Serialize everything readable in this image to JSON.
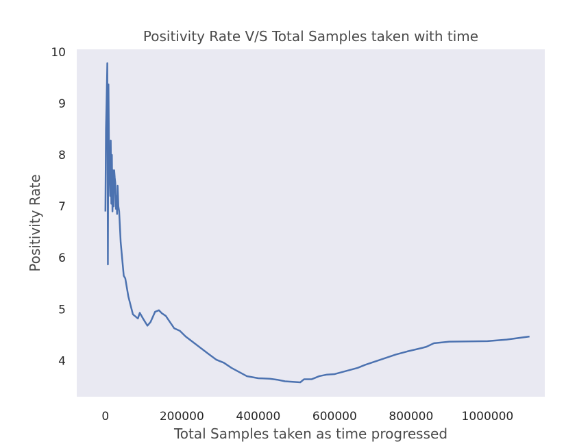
{
  "chart_data": {
    "type": "line",
    "title": "Positivity Rate V/S Total Samples taken with time",
    "xlabel": "Total Samples taken as time progressed",
    "ylabel": "Positivity Rate",
    "xlim": [
      -75000,
      1150000
    ],
    "ylim": [
      3.3,
      10.05
    ],
    "grid": false,
    "legend": "none",
    "colors": {
      "background": "#e9e9f2",
      "line": "#4c72b0"
    },
    "x_ticks": [
      0,
      200000,
      400000,
      600000,
      800000,
      1000000
    ],
    "x_tick_labels": [
      "0",
      "200000",
      "400000",
      "600000",
      "800000",
      "1000000"
    ],
    "y_ticks": [
      4,
      5,
      6,
      7,
      8,
      9,
      10
    ],
    "y_tick_labels": [
      "4",
      "5",
      "6",
      "7",
      "8",
      "9",
      "10"
    ],
    "x": [
      0,
      1500,
      3000,
      5000,
      6500,
      8000,
      9500,
      11000,
      12500,
      14000,
      15500,
      17000,
      18500,
      20000,
      21500,
      23000,
      24500,
      26000,
      27500,
      29000,
      30500,
      32000,
      34000,
      36000,
      40000,
      48000,
      52000,
      60000,
      72000,
      85000,
      90000,
      100000,
      110000,
      118000,
      130000,
      140000,
      148000,
      158000,
      180000,
      195000,
      210000,
      240000,
      270000,
      290000,
      310000,
      330000,
      350000,
      370000,
      400000,
      430000,
      450000,
      470000,
      510000,
      520000,
      540000,
      560000,
      580000,
      600000,
      620000,
      640000,
      660000,
      680000,
      700000,
      720000,
      740000,
      760000,
      790000,
      830000,
      840000,
      860000,
      900000,
      1000000,
      1050000,
      1110000
    ],
    "y": [
      6.9,
      8.5,
      9.0,
      9.78,
      5.87,
      9.37,
      8.0,
      7.6,
      7.2,
      8.28,
      7.05,
      8.0,
      6.9,
      7.7,
      7.0,
      7.7,
      7.55,
      7.45,
      6.95,
      7.2,
      6.85,
      7.4,
      7.0,
      6.9,
      6.3,
      5.65,
      5.6,
      5.25,
      4.9,
      4.82,
      4.93,
      4.8,
      4.68,
      4.75,
      4.95,
      4.98,
      4.92,
      4.87,
      4.63,
      4.58,
      4.47,
      4.3,
      4.13,
      4.02,
      3.96,
      3.86,
      3.78,
      3.7,
      3.66,
      3.65,
      3.63,
      3.6,
      3.58,
      3.64,
      3.64,
      3.7,
      3.73,
      3.74,
      3.78,
      3.82,
      3.86,
      3.92,
      3.97,
      4.02,
      4.07,
      4.12,
      4.18,
      4.25,
      4.27,
      4.34,
      4.37,
      4.38,
      4.41,
      4.47
    ]
  }
}
